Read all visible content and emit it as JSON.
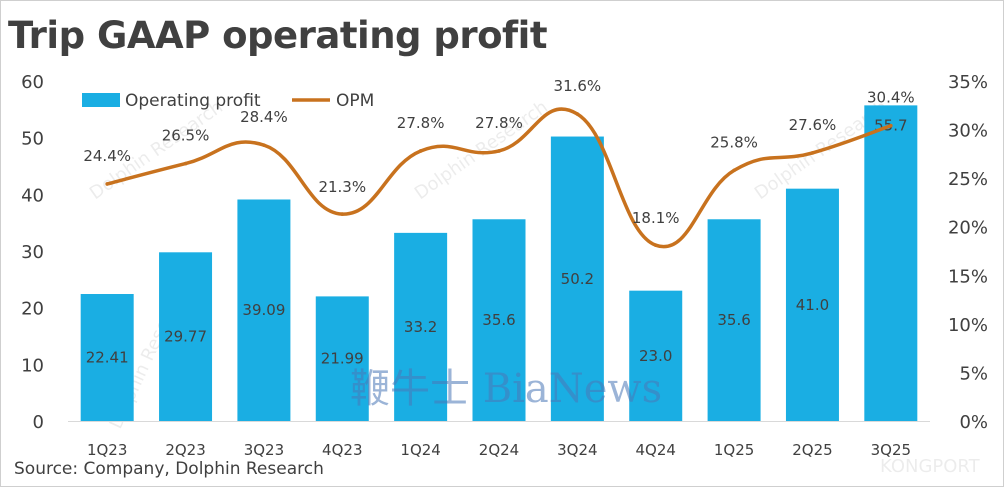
{
  "title": "Trip GAAP operating profit",
  "source": "Source: Company, Dolphin Research",
  "watermarks": [
    "Dolphin Research",
    "鞭牛士 BiaNews",
    "KONGPORT"
  ],
  "colors": {
    "bar": "#1aaee3",
    "line": "#c8721e",
    "text": "#404040"
  },
  "chart_data": {
    "type": "bar",
    "categories": [
      "1Q23",
      "2Q23",
      "3Q23",
      "4Q23",
      "1Q24",
      "2Q24",
      "3Q24",
      "4Q24",
      "1Q25",
      "2Q25",
      "3Q25"
    ],
    "series": [
      {
        "name": "Operating profit",
        "type": "bar",
        "axis": "left",
        "values": [
          22.41,
          29.77,
          39.09,
          21.99,
          33.2,
          35.6,
          50.2,
          23.0,
          35.6,
          41.0,
          55.7
        ],
        "labels": [
          "22.41",
          "29.77",
          "39.09",
          "21.99",
          "33.2",
          "35.6",
          "50.2",
          "23.0",
          "35.6",
          "41.0",
          "55.7"
        ]
      },
      {
        "name": "OPM",
        "type": "line",
        "axis": "right",
        "values": [
          24.4,
          26.5,
          28.4,
          21.3,
          27.8,
          27.8,
          31.6,
          18.1,
          25.8,
          27.6,
          30.4
        ],
        "labels": [
          "24.4%",
          "26.5%",
          "28.4%",
          "21.3%",
          "27.8%",
          "27.8%",
          "31.6%",
          "18.1%",
          "25.8%",
          "27.6%",
          "30.4%"
        ]
      }
    ],
    "y_left": {
      "min": 0,
      "max": 60,
      "ticks": [
        "0",
        "10",
        "20",
        "30",
        "40",
        "50",
        "60"
      ]
    },
    "y_right": {
      "min": 0,
      "max": 35,
      "ticks": [
        "0%",
        "5%",
        "10%",
        "15%",
        "20%",
        "25%",
        "30%",
        "35%"
      ]
    },
    "legend_position": "top-left",
    "grid": false
  }
}
